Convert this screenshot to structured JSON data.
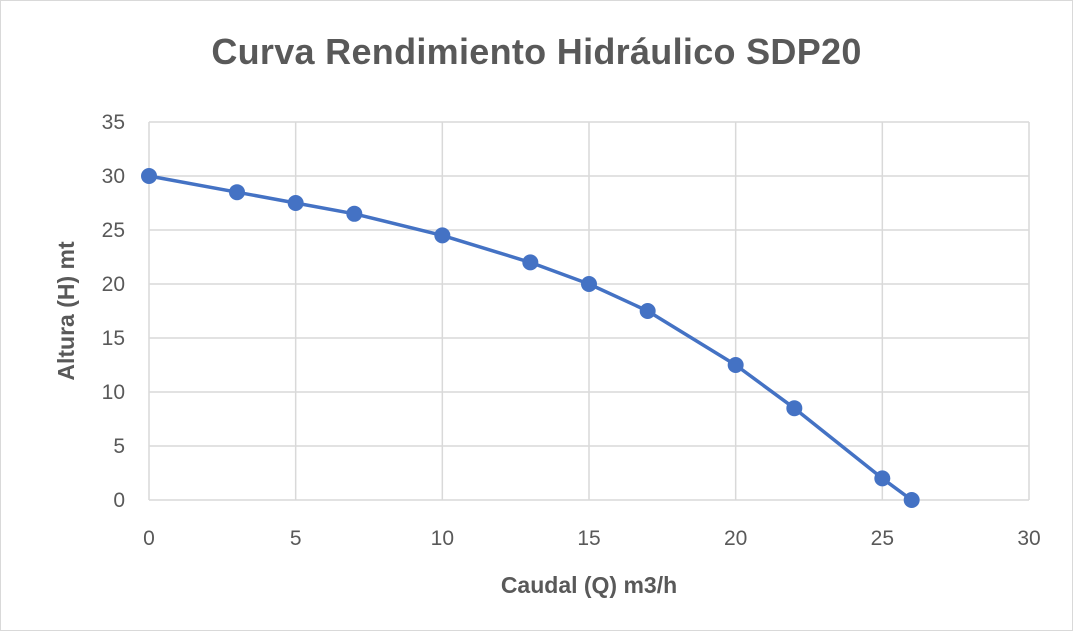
{
  "chart_data": {
    "type": "line",
    "title": "Curva Rendimiento Hidráulico SDP20",
    "xlabel": "Caudal (Q) m3/h",
    "ylabel": "Altura (H) mt",
    "xlim": [
      0,
      30
    ],
    "ylim": [
      0,
      35
    ],
    "xticks": [
      0,
      5,
      10,
      15,
      20,
      25,
      30
    ],
    "yticks": [
      0,
      5,
      10,
      15,
      20,
      25,
      30,
      35
    ],
    "grid": true,
    "legend": "none",
    "series": [
      {
        "color": "#4472c4",
        "marker": "circle",
        "x": [
          0,
          3,
          5,
          7,
          10,
          13,
          15,
          17,
          20,
          22,
          25,
          26
        ],
        "y": [
          30,
          28.5,
          27.5,
          26.5,
          24.5,
          22,
          20,
          17.5,
          12.5,
          8.5,
          2,
          0
        ]
      }
    ]
  }
}
